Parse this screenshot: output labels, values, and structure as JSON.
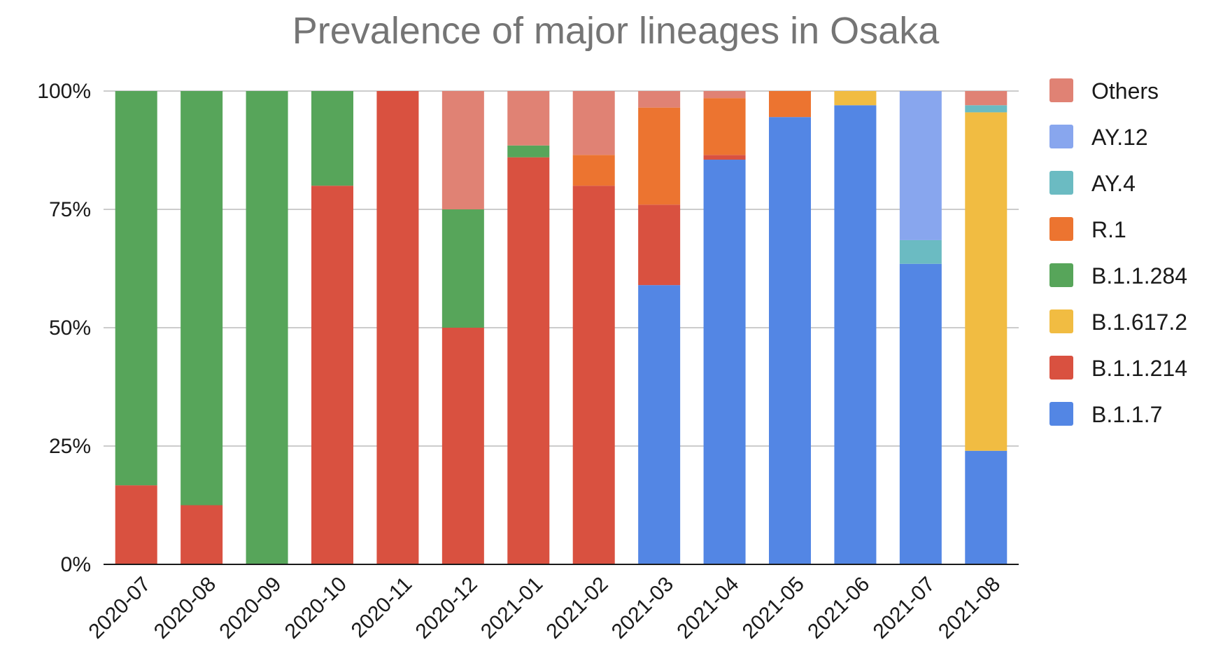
{
  "chart_data": {
    "type": "bar",
    "stacked": true,
    "title": "Prevalence of major lineages in Osaka",
    "xlabel": "",
    "ylabel": "",
    "ylim": [
      0,
      100
    ],
    "y_ticks": [
      "0%",
      "25%",
      "50%",
      "75%",
      "100%"
    ],
    "y_tick_values": [
      0,
      25,
      50,
      75,
      100
    ],
    "grid": true,
    "legend_position": "right",
    "categories": [
      "2020-07",
      "2020-08",
      "2020-09",
      "2020-10",
      "2020-11",
      "2020-12",
      "2021-01",
      "2021-02",
      "2021-03",
      "2021-04",
      "2021-05",
      "2021-06",
      "2021-07",
      "2021-08"
    ],
    "series": [
      {
        "name": "B.1.1.7",
        "color": "#5386e4",
        "values": [
          0,
          0,
          0,
          0,
          0,
          0,
          0,
          0,
          59,
          85.5,
          94.5,
          97,
          63.5,
          24
        ]
      },
      {
        "name": "B.1.1.214",
        "color": "#d95140",
        "values": [
          16.7,
          12.5,
          0,
          80,
          100,
          50,
          86,
          80,
          17,
          1,
          0,
          0,
          0,
          0
        ]
      },
      {
        "name": "B.1.617.2",
        "color": "#f1bc42",
        "values": [
          0,
          0,
          0,
          0,
          0,
          0,
          0,
          0,
          0,
          0,
          0,
          3,
          0,
          71.5
        ]
      },
      {
        "name": "B.1.1.284",
        "color": "#57a55a",
        "values": [
          83.3,
          87.5,
          100,
          20,
          0,
          25,
          2.5,
          0,
          0,
          0,
          0,
          0,
          0,
          0
        ]
      },
      {
        "name": "R.1",
        "color": "#ec7430",
        "values": [
          0,
          0,
          0,
          0,
          0,
          0,
          0,
          6.5,
          20.5,
          12,
          5.5,
          0,
          0,
          0
        ]
      },
      {
        "name": "AY.4",
        "color": "#6bbbc2",
        "values": [
          0,
          0,
          0,
          0,
          0,
          0,
          0,
          0,
          0,
          0,
          0,
          0,
          5,
          1.5
        ]
      },
      {
        "name": "AY.12",
        "color": "#88a6ee",
        "values": [
          0,
          0,
          0,
          0,
          0,
          0,
          0,
          0,
          0,
          0,
          0,
          0,
          31.5,
          0
        ]
      },
      {
        "name": "Others",
        "color": "#e08274",
        "values": [
          0,
          0,
          0,
          0,
          0,
          25,
          11.5,
          13.5,
          3.5,
          1.5,
          0,
          0,
          0,
          3
        ]
      }
    ]
  }
}
